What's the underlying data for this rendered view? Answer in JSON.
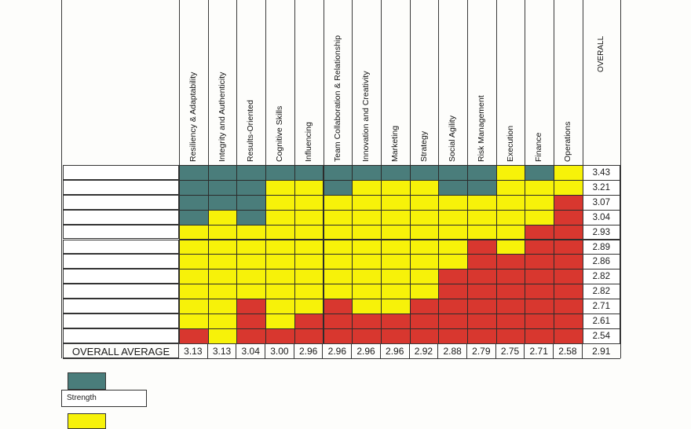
{
  "table": {
    "columns": [
      "Resiliency & Adaptability",
      "Integrity and Authenticity",
      "Results-Oriented",
      "Cognitive Skills",
      "Influencing",
      "Team Collaboration & Relationship",
      "Innovation and Creativity",
      "Marketing",
      "Strategy",
      "Social Agility",
      "Risk Management",
      "Execution",
      "Finance",
      "Operations"
    ],
    "overall_header": "OVERALL",
    "overall_values": [
      "3.43",
      "3.21",
      "3.07",
      "3.04",
      "2.93",
      "2.89",
      "2.86",
      "2.82",
      "2.82",
      "2.71",
      "2.61",
      "2.54"
    ],
    "average_label": "OVERALL AVERAGE",
    "average_values": [
      "3.13",
      "3.13",
      "3.04",
      "3.00",
      "2.96",
      "2.96",
      "2.96",
      "2.96",
      "2.92",
      "2.88",
      "2.79",
      "2.75",
      "2.71",
      "2.58"
    ],
    "overall_average": "2.91",
    "cell_colors": {
      "strength": "#4a7d7b",
      "mid": "#f7f209",
      "low": "#d8372f"
    },
    "column_bands": [
      {
        "strength": 4,
        "low": 11
      },
      {
        "strength": 3,
        "low": 12
      },
      {
        "strength": 4,
        "low": 9
      },
      {
        "strength": 1,
        "low": 11
      },
      {
        "strength": 1,
        "low": 10
      },
      {
        "strength": 2,
        "low": 9
      },
      {
        "strength": 1,
        "low": 10
      },
      {
        "strength": 1,
        "low": 10
      },
      {
        "strength": 1,
        "low": 9
      },
      {
        "strength": 2,
        "low": 7
      },
      {
        "strength": 2,
        "low": 5
      },
      {
        "strength": 0,
        "low": 6
      },
      {
        "strength": 1,
        "low": 4
      },
      {
        "strength": 0,
        "low": 2
      }
    ]
  },
  "legend": {
    "strength_label": "Strength"
  }
}
